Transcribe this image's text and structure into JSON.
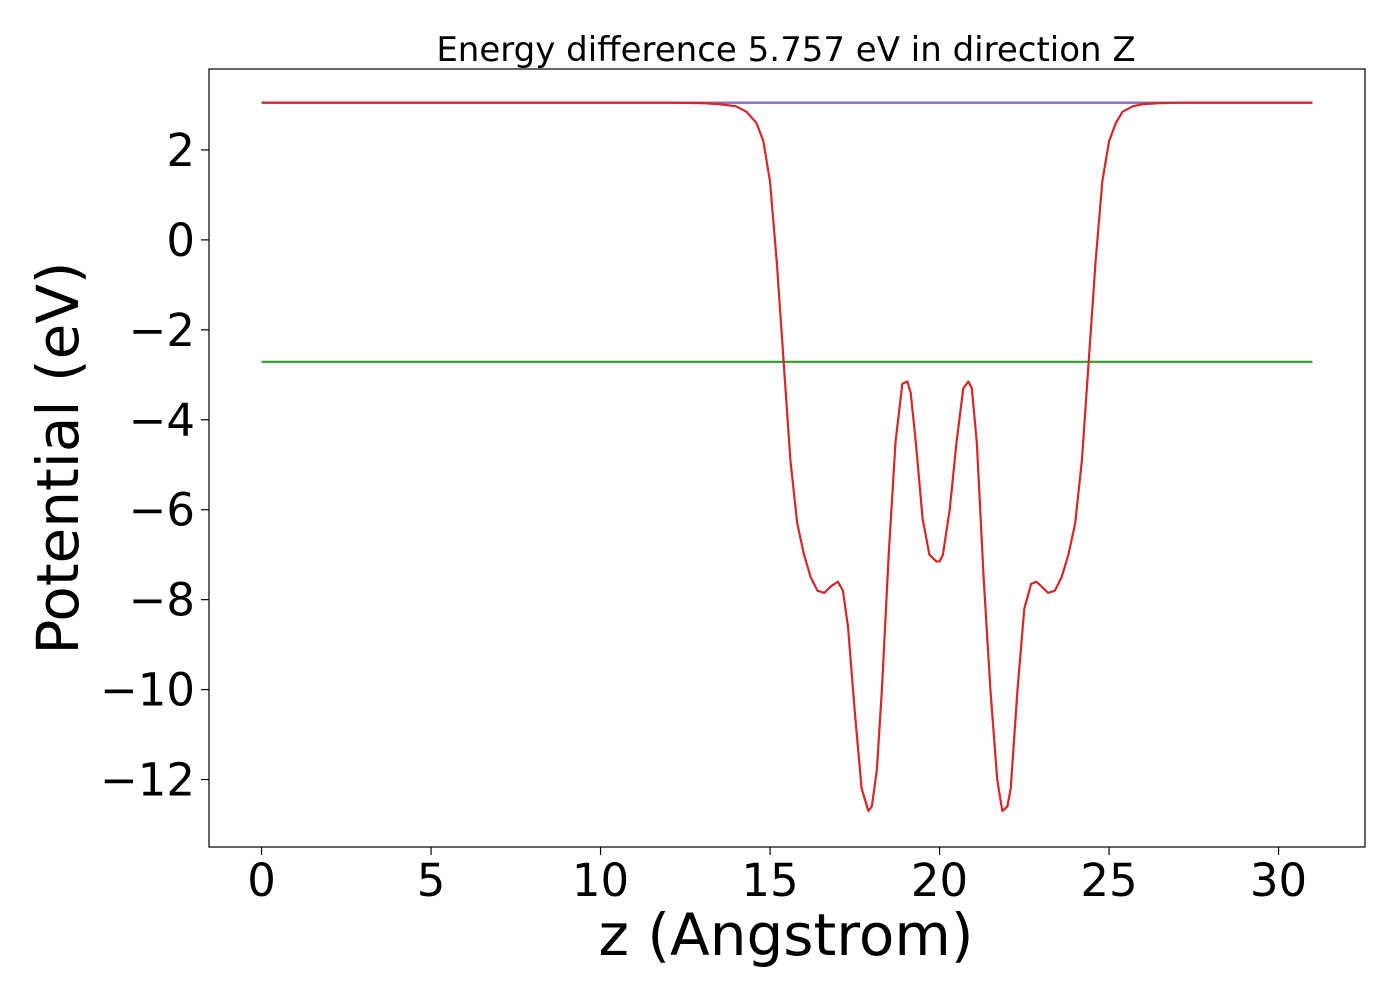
{
  "chart_data": {
    "type": "line",
    "title": "Energy difference 5.757 eV in direction Z",
    "xlabel": "z (Angstrom)",
    "ylabel": "Potential (eV)",
    "xlim": [
      -1.55,
      32.55
    ],
    "ylim": [
      -13.5,
      3.8
    ],
    "x_ticks": [
      0,
      5,
      10,
      15,
      20,
      25,
      30
    ],
    "y_ticks": [
      2,
      0,
      -2,
      -4,
      -6,
      -8,
      -10,
      -12
    ],
    "x_tick_labels": [
      "0",
      "5",
      "10",
      "15",
      "20",
      "25",
      "30"
    ],
    "y_tick_labels": [
      "2",
      "0",
      "−2",
      "−4",
      "−6",
      "−8",
      "−10",
      "−12"
    ],
    "grid": false,
    "legend": "none",
    "series": [
      {
        "color": "#1f77b4",
        "x": [
          0,
          31
        ],
        "y": [
          3.05,
          3.05
        ]
      },
      {
        "color": "#2ca02c",
        "x": [
          0,
          31
        ],
        "y": [
          -2.71,
          -2.71
        ]
      },
      {
        "color": "#9467bd",
        "x": [
          0,
          14.0,
          26.5,
          31
        ],
        "y": [
          3.05,
          3.05,
          3.05,
          3.05
        ]
      },
      {
        "color": "#d62728",
        "x": [
          0,
          5,
          10,
          12,
          13,
          13.5,
          14.0,
          14.3,
          14.6,
          14.8,
          15.0,
          15.2,
          15.4,
          15.6,
          15.8,
          16.0,
          16.2,
          16.4,
          16.6,
          16.8,
          17.0,
          17.15,
          17.3,
          17.5,
          17.7,
          17.9,
          18.0,
          18.15,
          18.3,
          18.5,
          18.7,
          18.9,
          19.05,
          19.15,
          19.3,
          19.5,
          19.7,
          19.9,
          20.0,
          20.1,
          20.3,
          20.5,
          20.7,
          20.85,
          20.95,
          21.1,
          21.3,
          21.5,
          21.7,
          21.85,
          22.0,
          22.1,
          22.3,
          22.5,
          22.7,
          22.85,
          23.0,
          23.2,
          23.4,
          23.6,
          23.8,
          24.0,
          24.2,
          24.4,
          24.6,
          24.8,
          25.0,
          25.2,
          25.4,
          25.7,
          26.0,
          26.5,
          27,
          28,
          31
        ],
        "y": [
          3.05,
          3.05,
          3.05,
          3.05,
          3.04,
          3.02,
          2.97,
          2.85,
          2.6,
          2.2,
          1.3,
          -0.5,
          -2.7,
          -4.9,
          -6.3,
          -7.0,
          -7.5,
          -7.8,
          -7.85,
          -7.7,
          -7.6,
          -7.8,
          -8.6,
          -10.5,
          -12.2,
          -12.7,
          -12.6,
          -11.8,
          -10.0,
          -7.0,
          -4.5,
          -3.2,
          -3.15,
          -3.4,
          -4.5,
          -6.2,
          -7.0,
          -7.15,
          -7.15,
          -7.0,
          -6.0,
          -4.5,
          -3.3,
          -3.15,
          -3.3,
          -4.5,
          -7.5,
          -10.0,
          -12.0,
          -12.7,
          -12.6,
          -12.2,
          -10.0,
          -8.2,
          -7.65,
          -7.6,
          -7.7,
          -7.85,
          -7.8,
          -7.5,
          -7.0,
          -6.3,
          -4.9,
          -2.7,
          -0.5,
          1.3,
          2.2,
          2.6,
          2.85,
          2.97,
          3.02,
          3.04,
          3.05,
          3.05,
          3.05
        ]
      }
    ]
  }
}
